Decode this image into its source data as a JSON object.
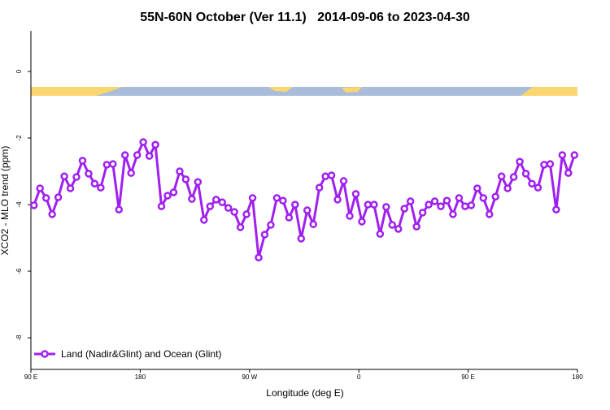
{
  "chart_data": {
    "type": "line",
    "title": "55N-60N October (Ver 11.1)   2014-09-06 to 2023-04-30",
    "xlabel": "Longitude (deg E)",
    "ylabel": "XCO2 - MLO trend (ppm)",
    "x": [
      92.5,
      97.5,
      102.5,
      107.5,
      112.5,
      117.5,
      122.5,
      127.5,
      132.5,
      137.5,
      142.5,
      147.5,
      152.5,
      157.5,
      162.5,
      167.5,
      172.5,
      177.5,
      182.5,
      187.5,
      192.5,
      197.5,
      202.5,
      207.5,
      212.5,
      217.5,
      222.5,
      227.5,
      232.5,
      237.5,
      242.5,
      247.5,
      252.5,
      257.5,
      262.5,
      267.5,
      272.5,
      277.5,
      282.5,
      287.5,
      292.5,
      297.5,
      302.5,
      307.5,
      312.5,
      317.5,
      322.5,
      327.5,
      332.5,
      337.5,
      342.5,
      347.5,
      352.5,
      357.5,
      362.5,
      367.5,
      372.5,
      377.5,
      382.5,
      387.5,
      392.5,
      397.5,
      402.5,
      407.5,
      412.5,
      417.5,
      422.5,
      427.5,
      432.5,
      437.5,
      442.5,
      447.5,
      452.5,
      457.5,
      462.5,
      467.5,
      472.5,
      477.5,
      482.5,
      487.5,
      492.5,
      497.5,
      502.5,
      507.5,
      512.5,
      517.5,
      522.5,
      527.5,
      532.5,
      537.5
    ],
    "series": [
      {
        "name": "Land (Nadir&Glint) and Ocean (Glint)",
        "color": "#a020f0",
        "values": [
          -4.02,
          -3.51,
          -3.8,
          -4.29,
          -3.78,
          -3.15,
          -3.51,
          -3.17,
          -2.68,
          -3.07,
          -3.37,
          -3.49,
          -2.8,
          -2.78,
          -4.15,
          -2.51,
          -3.05,
          -2.51,
          -2.12,
          -2.54,
          -2.2,
          -4.05,
          -3.73,
          -3.63,
          -3.0,
          -3.24,
          -3.83,
          -3.32,
          -4.46,
          -4.05,
          -3.85,
          -3.93,
          -4.1,
          -4.22,
          -4.68,
          -4.29,
          -3.8,
          -5.59,
          -4.9,
          -4.61,
          -3.8,
          -3.88,
          -4.39,
          -4.0,
          -5.02,
          -4.17,
          -4.59,
          -3.49,
          -3.15,
          -3.12,
          -3.85,
          -3.29,
          -4.34,
          -3.68,
          -4.51,
          -4.0,
          -4.0,
          -4.88,
          -4.07,
          -4.61,
          -4.73,
          -4.12,
          -3.9,
          -4.66,
          -4.24,
          -4.0,
          -3.9,
          -4.05,
          -3.88,
          -4.29,
          -3.8,
          -4.05,
          -4.02,
          -3.51,
          -3.8,
          -4.29,
          -3.76,
          -3.15,
          -3.51,
          -3.17,
          -2.71,
          -3.07,
          -3.37,
          -3.49,
          -2.8,
          -2.78,
          -4.15,
          -2.51,
          -3.05,
          -2.51
        ]
      }
    ],
    "xlim": [
      90,
      540
    ],
    "xticks": [
      {
        "value": 90,
        "label": "90 E"
      },
      180,
      {
        "value": 270,
        "label": "90 W"
      },
      {
        "value": 360,
        "label": "0"
      },
      {
        "value": 450,
        "label": "90 E"
      },
      {
        "value": 540,
        "label": "180"
      }
    ],
    "ylim": [
      -8.95,
      1.22
    ],
    "yticks": [
      0,
      -2,
      -4,
      -6,
      -8
    ],
    "legend": "bottom-left"
  }
}
